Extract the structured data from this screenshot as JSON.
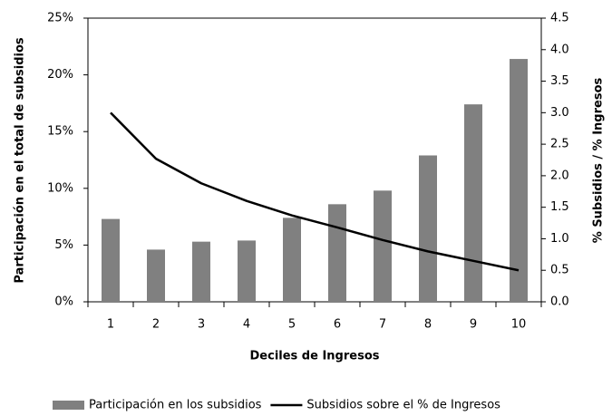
{
  "chart_data": {
    "type": "combo",
    "xlabel": "Deciles de Ingresos",
    "ylabel": "Participación  en el total de subsidios",
    "y2label": "% Subsidios  / % Ingresos",
    "categories": [
      "1",
      "2",
      "3",
      "4",
      "5",
      "6",
      "7",
      "8",
      "9",
      "10"
    ],
    "series": [
      {
        "name": "Participación en los subsidios",
        "type": "bar",
        "color": "#808080",
        "values": [
          7.3,
          4.6,
          5.3,
          5.4,
          7.4,
          8.6,
          9.8,
          12.9,
          17.4,
          21.4
        ]
      },
      {
        "name": "Subsidios sobre el % de Ingresos",
        "type": "line",
        "axis": "y2",
        "color": "#000000",
        "values": [
          3.0,
          2.27,
          1.88,
          1.6,
          1.37,
          1.18,
          0.98,
          0.8,
          0.65,
          0.5
        ]
      }
    ],
    "ylim": [
      0,
      25
    ],
    "yticks": [
      {
        "value": 0,
        "label": "0%"
      },
      {
        "value": 5,
        "label": "5%"
      },
      {
        "value": 10,
        "label": "10%"
      },
      {
        "value": 15,
        "label": "15%"
      },
      {
        "value": 20,
        "label": "20%"
      },
      {
        "value": 25,
        "label": "25%"
      }
    ],
    "y2lim": [
      0,
      4.5
    ],
    "y2ticks": [
      {
        "value": 0,
        "label": "0.0"
      },
      0.5,
      {
        "value": 1,
        "label": "1.0"
      },
      1.5,
      {
        "value": 2,
        "label": "2.0"
      },
      2.5,
      {
        "value": 3,
        "label": "3.0"
      },
      3.5,
      {
        "value": 4,
        "label": "4.0"
      },
      4.5
    ],
    "grid": false,
    "legend": "bottom"
  }
}
